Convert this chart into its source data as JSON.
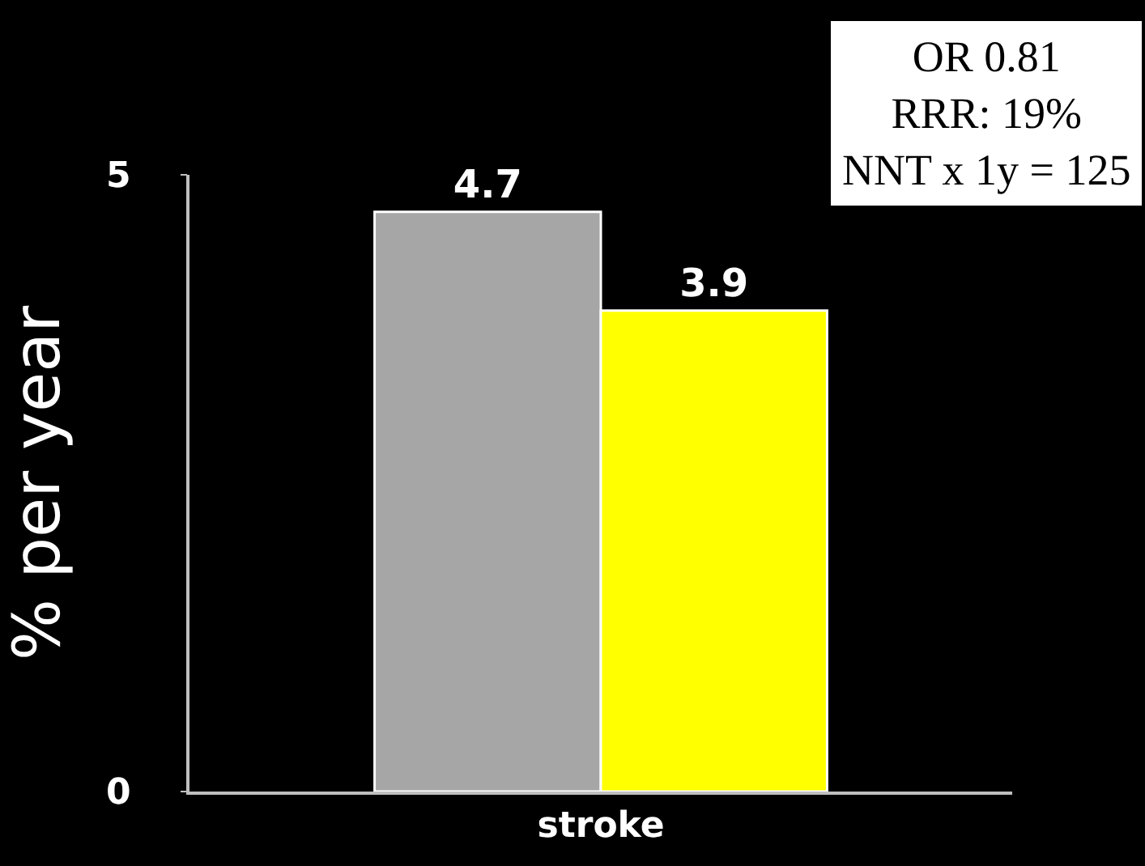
{
  "chart_data": {
    "type": "bar",
    "categories": [
      "stroke"
    ],
    "series": [
      {
        "color": "#a6a6a6",
        "values": [
          4.7
        ]
      },
      {
        "color": "#ffff00",
        "values": [
          3.9
        ]
      }
    ],
    "ylabel": "% per year",
    "ylim": [
      0,
      5
    ],
    "yticks": [
      0,
      5
    ],
    "data_labels": true,
    "annotations": [
      "OR 0.81\nRRR: 19%\nNNT x 1y = 125"
    ]
  }
}
